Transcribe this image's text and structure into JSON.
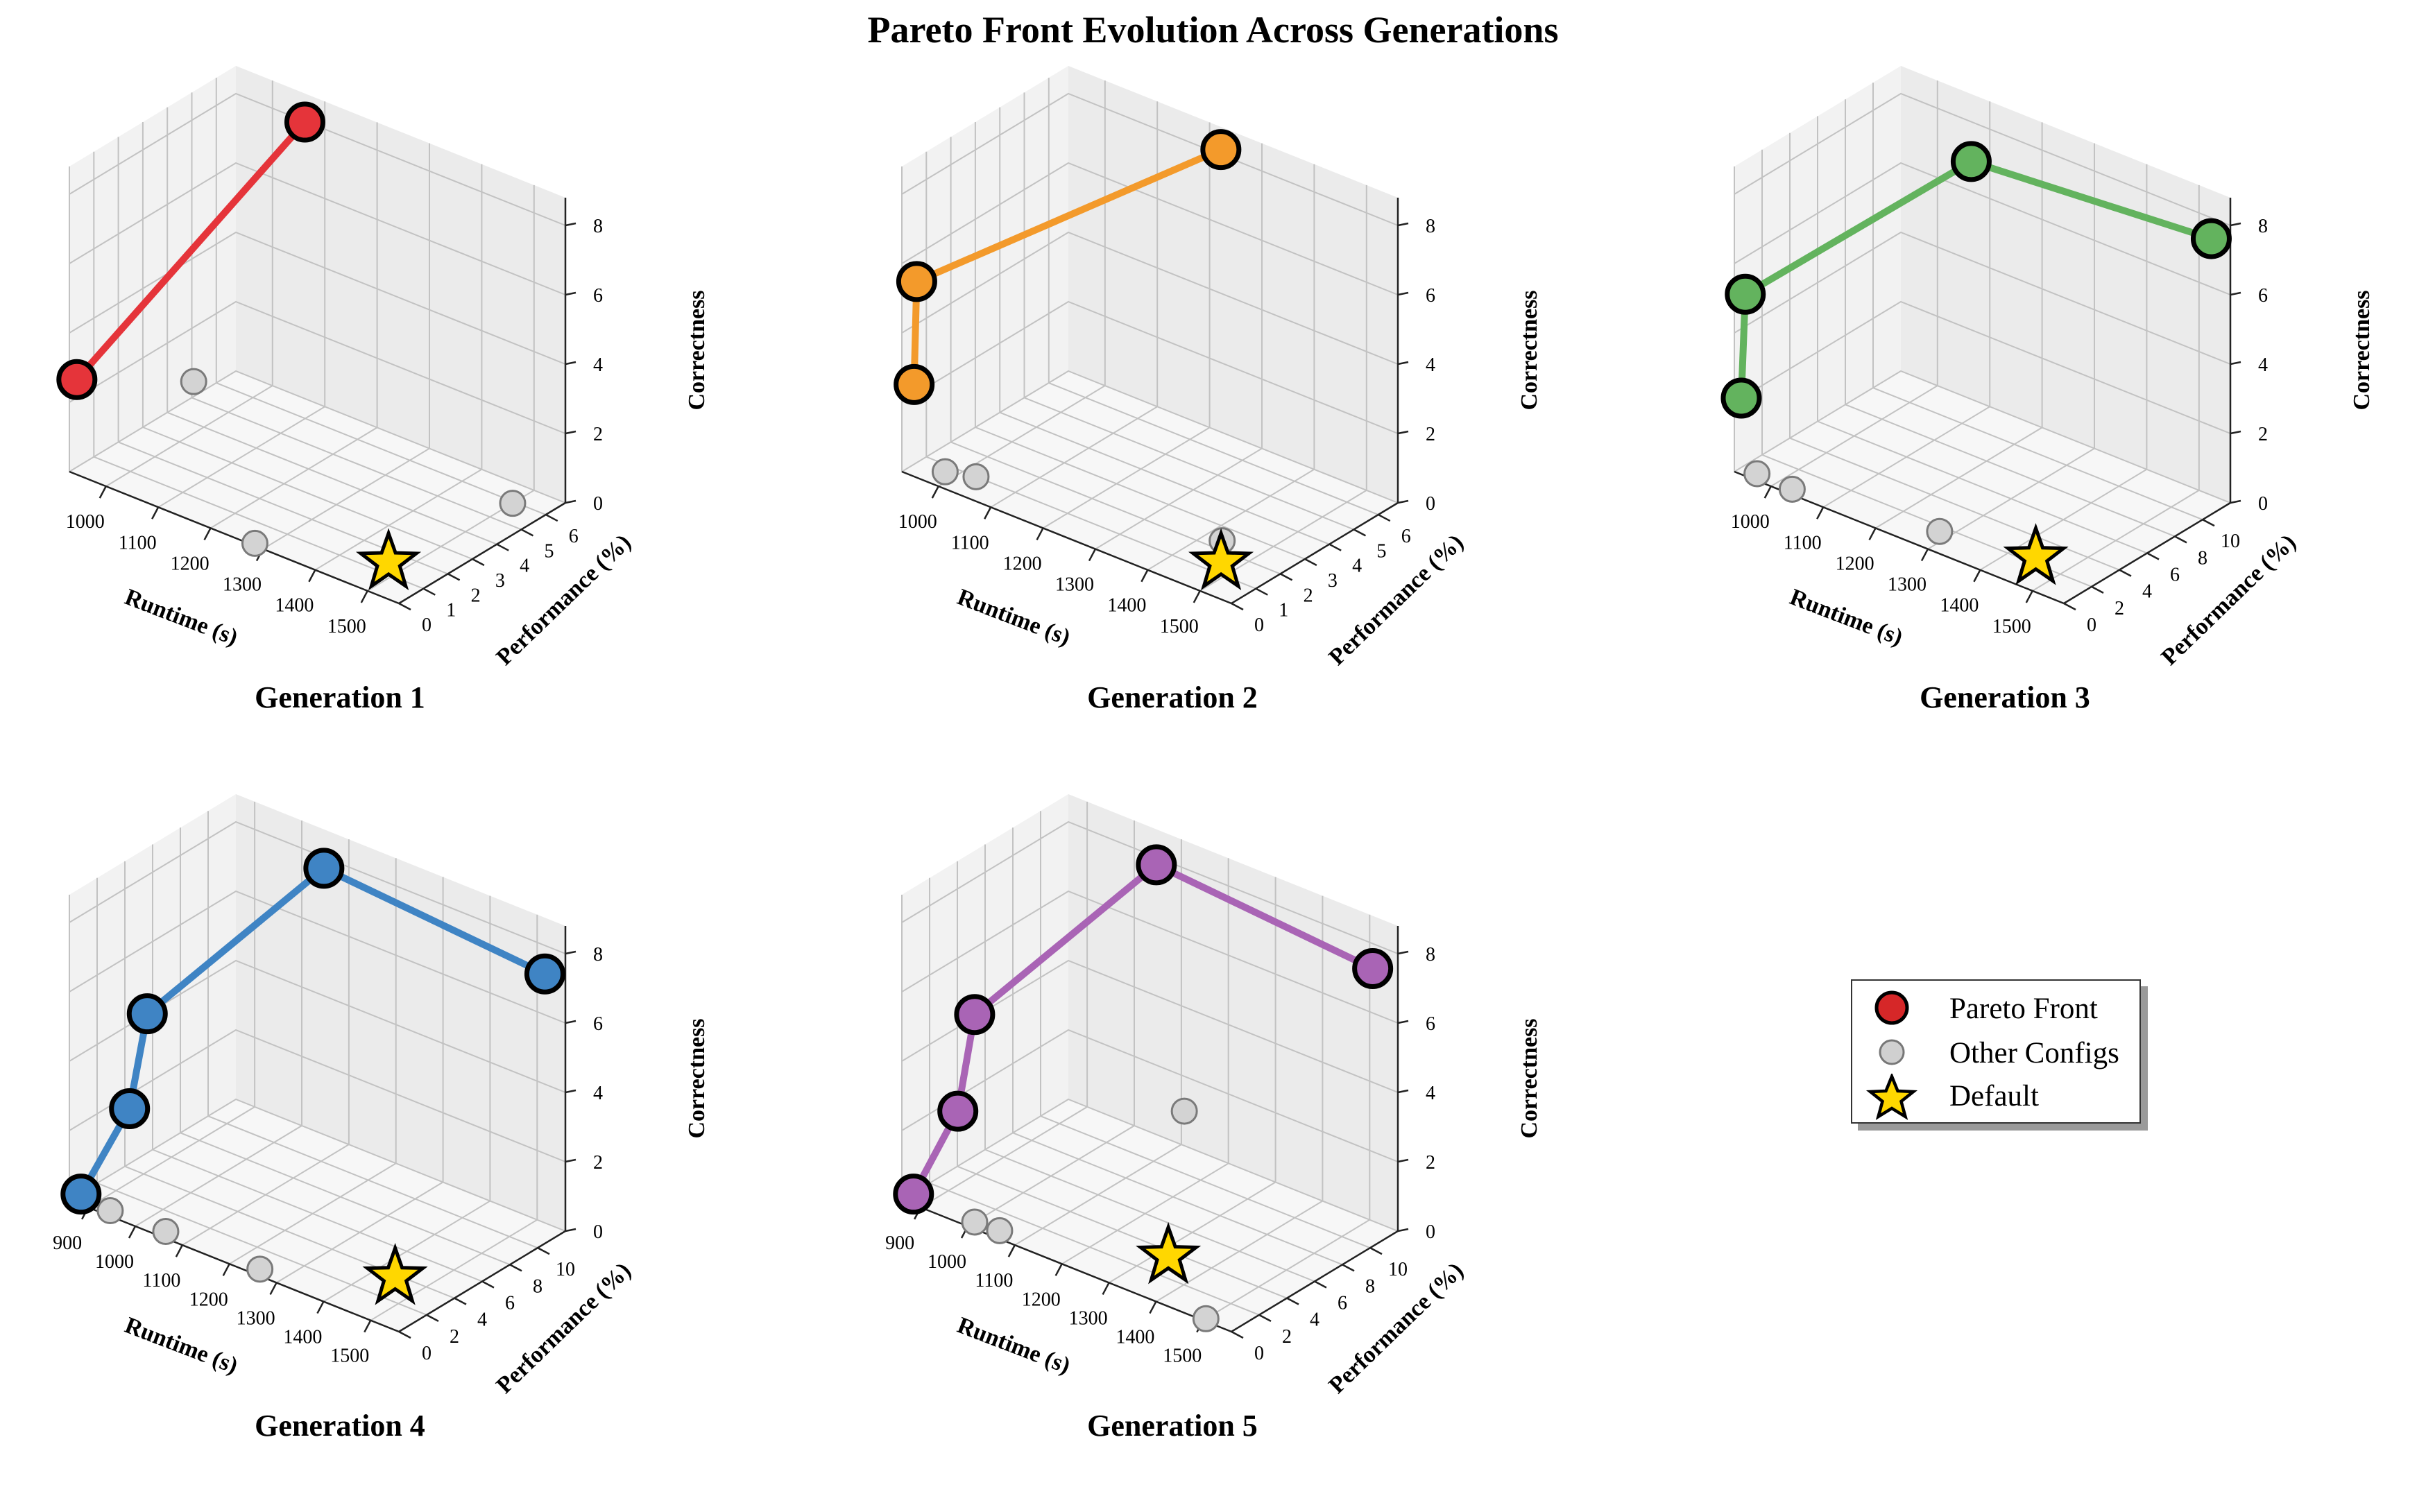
{
  "figure": {
    "title": "Pareto Front Evolution Across Generations"
  },
  "legend": {
    "items": [
      {
        "label": "Pareto Front",
        "marker": "circle",
        "color": "#d62728"
      },
      {
        "label": "Other Configs",
        "marker": "circle",
        "color": "#d0d0d0"
      },
      {
        "label": "Default",
        "marker": "star",
        "color": "#ffd700"
      }
    ]
  },
  "chart_data": [
    {
      "type": "scatter3d",
      "title": "Generation 1",
      "xlabel": "Runtime (s)",
      "ylabel": "Performance (%)",
      "zlabel": "Correctness",
      "xlim": [
        930,
        1560
      ],
      "ylim": [
        0,
        6.8
      ],
      "zlim": [
        0,
        8.8
      ],
      "xticks": [
        1000,
        1100,
        1200,
        1300,
        1400,
        1500
      ],
      "yticks": [
        0,
        1,
        2,
        3,
        4,
        5,
        6
      ],
      "zticks": [
        0,
        2,
        4,
        6,
        8
      ],
      "grid": true,
      "pareto_color": "#e5343a",
      "pareto": [
        {
          "x": 935,
          "y": 0.2,
          "z": 2.6
        },
        {
          "x": 1090,
          "y": 6.2,
          "z": 8.4
        }
      ],
      "others": [
        {
          "x": 1060,
          "y": 2.3,
          "z": 2.4
        },
        {
          "x": 1520,
          "y": 5.5,
          "z": 0.3
        },
        {
          "x": 1280,
          "y": 0.1,
          "z": 0.0
        }
      ],
      "default": {
        "x": 1470,
        "y": 1.5,
        "z": 0.0
      }
    },
    {
      "type": "scatter3d",
      "title": "Generation 2",
      "xlabel": "Runtime (s)",
      "ylabel": "Performance (%)",
      "zlabel": "Correctness",
      "xlim": [
        930,
        1560
      ],
      "ylim": [
        0,
        6.8
      ],
      "zlim": [
        0,
        8.8
      ],
      "xticks": [
        1000,
        1100,
        1200,
        1300,
        1400,
        1500
      ],
      "yticks": [
        0,
        1,
        2,
        3,
        4,
        5,
        6
      ],
      "zticks": [
        0,
        2,
        4,
        6,
        8
      ],
      "grid": true,
      "pareto_color": "#f39a2b",
      "pareto": [
        {
          "x": 930,
          "y": 0.5,
          "z": 2.3
        },
        {
          "x": 935,
          "y": 0.5,
          "z": 5.3
        },
        {
          "x": 1245,
          "y": 6.3,
          "z": 8.5
        }
      ],
      "others": [
        {
          "x": 980,
          "y": 0.7,
          "z": 0.0
        },
        {
          "x": 1025,
          "y": 1.0,
          "z": 0.0
        },
        {
          "x": 1430,
          "y": 2.4,
          "z": 0.0
        }
      ],
      "default": {
        "x": 1470,
        "y": 1.5,
        "z": 0.0
      }
    },
    {
      "type": "scatter3d",
      "title": "Generation 3",
      "xlabel": "Runtime (s)",
      "ylabel": "Performance (%)",
      "zlabel": "Correctness",
      "xlim": [
        930,
        1560
      ],
      "ylim": [
        0,
        12
      ],
      "zlim": [
        0,
        8.8
      ],
      "xticks": [
        1000,
        1100,
        1200,
        1300,
        1400,
        1500
      ],
      "yticks": [
        0,
        2,
        4,
        6,
        8,
        10
      ],
      "zticks": [
        0,
        2,
        4,
        6,
        8
      ],
      "grid": true,
      "pareto_color": "#63b35e",
      "pareto": [
        {
          "x": 930,
          "y": 0.5,
          "z": 2.0
        },
        {
          "x": 935,
          "y": 0.6,
          "z": 5.0
        },
        {
          "x": 1160,
          "y": 8.4,
          "z": 8.3
        },
        {
          "x": 1550,
          "y": 11.0,
          "z": 7.8
        }
      ],
      "others": [
        {
          "x": 960,
          "y": 0.5,
          "z": 0.0
        },
        {
          "x": 1030,
          "y": 0.4,
          "z": 0.0
        },
        {
          "x": 1280,
          "y": 1.6,
          "z": 0.0
        }
      ],
      "default": {
        "x": 1440,
        "y": 2.5,
        "z": 0.0
      }
    },
    {
      "type": "scatter3d",
      "title": "Generation 4",
      "xlabel": "Runtime (s)",
      "ylabel": "Performance (%)",
      "zlabel": "Correctness",
      "xlim": [
        860,
        1560
      ],
      "ylim": [
        0,
        12
      ],
      "zlim": [
        0,
        8.8
      ],
      "xticks": [
        900,
        1000,
        1100,
        1200,
        1300,
        1400,
        1500
      ],
      "yticks": [
        0,
        2,
        4,
        6,
        8,
        10
      ],
      "zticks": [
        0,
        2,
        4,
        6,
        8
      ],
      "grid": true,
      "pareto_color": "#3f84c4",
      "pareto": [
        {
          "x": 870,
          "y": 0.5,
          "z": 0.1
        },
        {
          "x": 920,
          "y": 2.3,
          "z": 2.4
        },
        {
          "x": 940,
          "y": 2.9,
          "z": 5.1
        },
        {
          "x": 1100,
          "y": 10.2,
          "z": 8.4
        },
        {
          "x": 1540,
          "y": 11.2,
          "z": 7.5
        }
      ],
      "others": [
        {
          "x": 935,
          "y": 0.4,
          "z": 0.0
        },
        {
          "x": 1050,
          "y": 0.5,
          "z": 0.0
        },
        {
          "x": 1250,
          "y": 0.5,
          "z": 0.0
        }
      ],
      "default": {
        "x": 1440,
        "y": 3.8,
        "z": 0.0
      }
    },
    {
      "type": "scatter3d",
      "title": "Generation 5",
      "xlabel": "Runtime (s)",
      "ylabel": "Performance (%)",
      "zlabel": "Correctness",
      "xlim": [
        860,
        1560
      ],
      "ylim": [
        0,
        12
      ],
      "zlim": [
        0,
        8.8
      ],
      "xticks": [
        900,
        1000,
        1100,
        1200,
        1300,
        1400,
        1500
      ],
      "yticks": [
        0,
        2,
        4,
        6,
        8,
        10
      ],
      "zticks": [
        0,
        2,
        4,
        6,
        8
      ],
      "grid": true,
      "pareto_color": "#a964b5",
      "pareto": [
        {
          "x": 870,
          "y": 0.5,
          "z": 0.1
        },
        {
          "x": 920,
          "y": 2.0,
          "z": 2.4
        },
        {
          "x": 935,
          "y": 2.7,
          "z": 5.1
        },
        {
          "x": 1100,
          "y": 10.2,
          "z": 8.5
        },
        {
          "x": 1530,
          "y": 11.2,
          "z": 7.6
        }
      ],
      "others": [
        {
          "x": 1180,
          "y": 9.5,
          "z": 2.0
        },
        {
          "x": 1000,
          "y": 0.5,
          "z": 0.0
        },
        {
          "x": 1050,
          "y": 0.6,
          "z": 0.0
        },
        {
          "x": 1500,
          "y": 0.2,
          "z": 0.0
        }
      ],
      "default": {
        "x": 1320,
        "y": 3.6,
        "z": 0.0
      }
    }
  ]
}
